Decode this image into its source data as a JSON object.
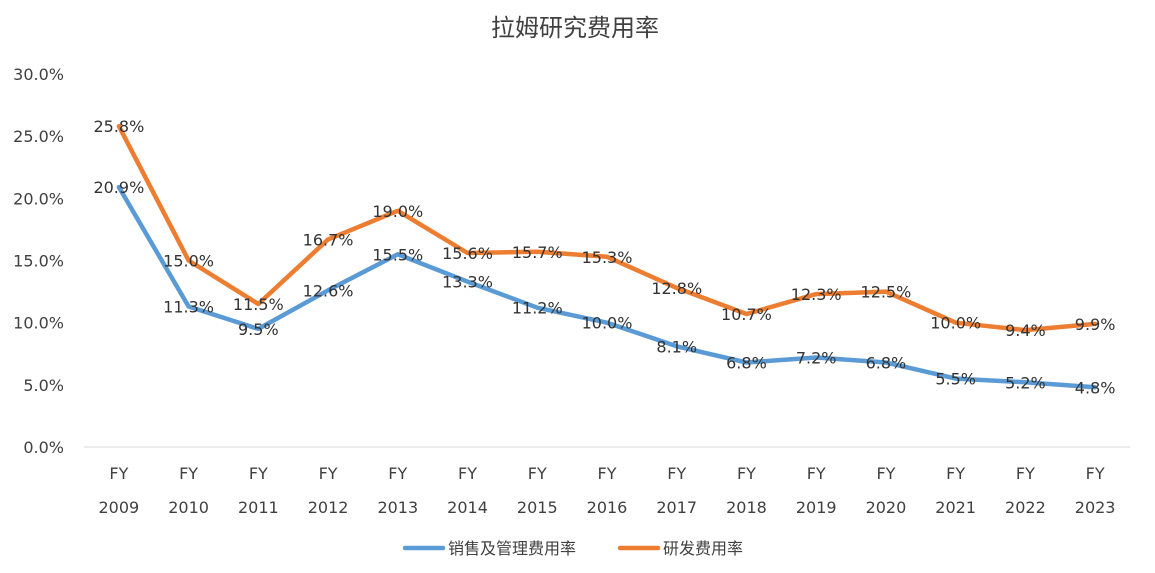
{
  "chart_data": {
    "type": "line",
    "title": "拉姆研究费用率",
    "xlabel": "",
    "ylabel": "",
    "categories": [
      [
        "FY",
        "2009"
      ],
      [
        "FY",
        "2010"
      ],
      [
        "FY",
        "2011"
      ],
      [
        "FY",
        "2012"
      ],
      [
        "FY",
        "2013"
      ],
      [
        "FY",
        "2014"
      ],
      [
        "FY",
        "2015"
      ],
      [
        "FY",
        "2016"
      ],
      [
        "FY",
        "2017"
      ],
      [
        "FY",
        "2018"
      ],
      [
        "FY",
        "2019"
      ],
      [
        "FY",
        "2020"
      ],
      [
        "FY",
        "2021"
      ],
      [
        "FY",
        "2022"
      ],
      [
        "FY",
        "2023"
      ]
    ],
    "ylim": [
      0,
      30
    ],
    "yticks": [
      "0.0%",
      "5.0%",
      "10.0%",
      "15.0%",
      "20.0%",
      "25.0%",
      "30.0%"
    ],
    "grid": false,
    "legend_position": "bottom",
    "series": [
      {
        "name": "销售及管理费用率",
        "color": "#5B9BD5",
        "values": [
          20.9,
          11.3,
          9.5,
          12.6,
          15.5,
          13.3,
          11.2,
          10.0,
          8.1,
          6.8,
          7.2,
          6.8,
          5.5,
          5.2,
          4.8
        ],
        "labels": [
          "20.9%",
          "11.3%",
          "9.5%",
          "12.6%",
          "15.5%",
          "13.3%",
          "11.2%",
          "10.0%",
          "8.1%",
          "6.8%",
          "7.2%",
          "6.8%",
          "5.5%",
          "5.2%",
          "4.8%"
        ]
      },
      {
        "name": "研发费用率",
        "color": "#ED7D31",
        "values": [
          25.8,
          15.0,
          11.5,
          16.7,
          19.0,
          15.6,
          15.7,
          15.3,
          12.8,
          10.7,
          12.3,
          12.5,
          10.0,
          9.4,
          9.9
        ],
        "labels": [
          "25.8%",
          "15.0%",
          "11.5%",
          "16.7%",
          "19.0%",
          "15.6%",
          "15.7%",
          "15.3%",
          "12.8%",
          "10.7%",
          "12.3%",
          "12.5%",
          "10.0%",
          "9.4%",
          "9.9%"
        ]
      }
    ]
  }
}
